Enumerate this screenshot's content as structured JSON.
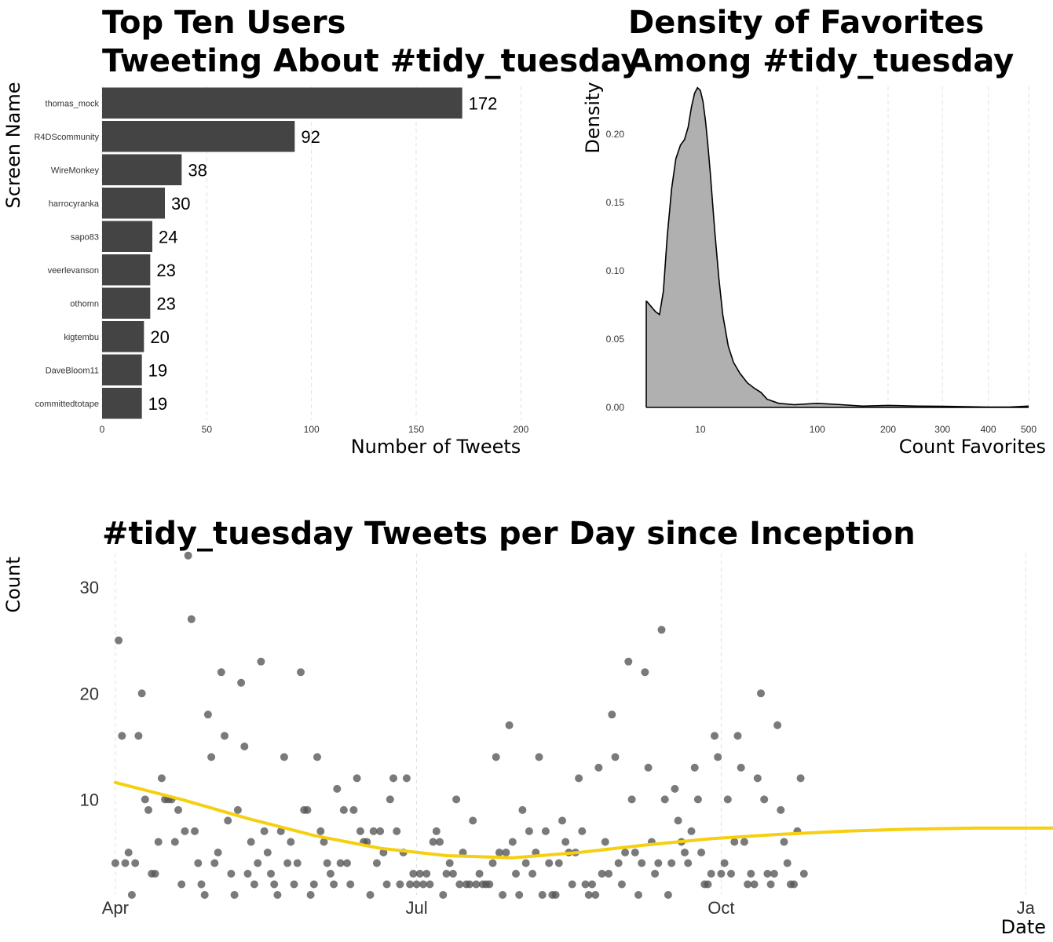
{
  "chart_data": [
    {
      "type": "bar",
      "orientation": "horizontal",
      "title_lines": [
        "Top Ten Users",
        "Tweeting About #tidy_tuesday"
      ],
      "xlabel": "Number of Tweets",
      "ylabel": "Screen Name",
      "categories": [
        "thomas_mock",
        "R4DScommunity",
        "WireMonkey",
        "harrocyranka",
        "sapo83",
        "veerlevanson",
        "othomn",
        "kigtembu",
        "DaveBloom11",
        "committedtotape"
      ],
      "values": [
        172,
        92,
        38,
        30,
        24,
        23,
        23,
        20,
        19,
        19
      ],
      "xticks": [
        "0",
        "50",
        "100",
        "150",
        "200"
      ],
      "xlim": [
        0,
        225
      ],
      "grid": "vertical dashed",
      "bar_color": "#444444"
    },
    {
      "type": "area",
      "title_lines": [
        "Density of Favorites",
        "Among #tidy_tuesday"
      ],
      "xlabel": "Count Favorites",
      "ylabel": "Density",
      "x_scale": "sqrt",
      "xticks": [
        "10",
        "100",
        "200",
        "300",
        "400",
        "500"
      ],
      "yticks": [
        "0.00",
        "0.05",
        "0.10",
        "0.15",
        "0.20"
      ],
      "ylim": [
        0,
        0.235
      ],
      "fill_color": "#b0b0b0",
      "line_color": "#000000",
      "density": [
        [
          0,
          0.078
        ],
        [
          0.3,
          0.07
        ],
        [
          0.6,
          0.068
        ],
        [
          1.0,
          0.085
        ],
        [
          1.5,
          0.125
        ],
        [
          2.2,
          0.16
        ],
        [
          3.0,
          0.182
        ],
        [
          4.0,
          0.192
        ],
        [
          5.0,
          0.196
        ],
        [
          6.0,
          0.205
        ],
        [
          7.0,
          0.22
        ],
        [
          8.0,
          0.23
        ],
        [
          9.0,
          0.234
        ],
        [
          10.0,
          0.232
        ],
        [
          11.0,
          0.224
        ],
        [
          12.0,
          0.21
        ],
        [
          13.0,
          0.192
        ],
        [
          14.0,
          0.172
        ],
        [
          16.0,
          0.13
        ],
        [
          18.0,
          0.095
        ],
        [
          20.0,
          0.068
        ],
        [
          23.0,
          0.045
        ],
        [
          26.0,
          0.033
        ],
        [
          30.0,
          0.025
        ],
        [
          35.0,
          0.018
        ],
        [
          40.0,
          0.014
        ],
        [
          45.0,
          0.011
        ],
        [
          50.0,
          0.006
        ],
        [
          60.0,
          0.003
        ],
        [
          75.0,
          0.002
        ],
        [
          100,
          0.003
        ],
        [
          130,
          0.002
        ],
        [
          160,
          0.001
        ],
        [
          200,
          0.0015
        ],
        [
          250,
          0.001
        ],
        [
          300,
          0.0008
        ],
        [
          350,
          0.0005
        ],
        [
          400,
          0.0003
        ],
        [
          450,
          0.0003
        ],
        [
          500,
          0.001
        ]
      ]
    },
    {
      "type": "scatter",
      "title": "#tidy_tuesday Tweets per Day since Inception",
      "xlabel": "Date",
      "ylabel": "Count",
      "xticks": [
        "Apr",
        "Jul",
        "Oct",
        "Ja"
      ],
      "yticks": [
        "10",
        "20",
        "30"
      ],
      "x_start_date": "2018-04-01",
      "xlim_days": [
        -4,
        283
      ],
      "ylim": [
        1,
        33.2
      ],
      "point_color": "#555555",
      "smooth_color": "#f5cf10",
      "points": [
        [
          0,
          4
        ],
        [
          1,
          25
        ],
        [
          2,
          16
        ],
        [
          3,
          4
        ],
        [
          4,
          5
        ],
        [
          5,
          1
        ],
        [
          6,
          4
        ],
        [
          7,
          16
        ],
        [
          8,
          20
        ],
        [
          9,
          10
        ],
        [
          10,
          9
        ],
        [
          11,
          3
        ],
        [
          12,
          3
        ],
        [
          13,
          6
        ],
        [
          14,
          12
        ],
        [
          15,
          10
        ],
        [
          16,
          10
        ],
        [
          17,
          10
        ],
        [
          18,
          6
        ],
        [
          19,
          9
        ],
        [
          20,
          2
        ],
        [
          21,
          7
        ],
        [
          22,
          33
        ],
        [
          23,
          27
        ],
        [
          24,
          7
        ],
        [
          25,
          4
        ],
        [
          26,
          2
        ],
        [
          27,
          1
        ],
        [
          28,
          18
        ],
        [
          29,
          14
        ],
        [
          30,
          4
        ],
        [
          31,
          5
        ],
        [
          32,
          22
        ],
        [
          33,
          16
        ],
        [
          34,
          8
        ],
        [
          35,
          3
        ],
        [
          36,
          1
        ],
        [
          37,
          9
        ],
        [
          38,
          21
        ],
        [
          39,
          15
        ],
        [
          40,
          3
        ],
        [
          41,
          6
        ],
        [
          42,
          2
        ],
        [
          43,
          4
        ],
        [
          44,
          23
        ],
        [
          45,
          7
        ],
        [
          46,
          5
        ],
        [
          47,
          3
        ],
        [
          48,
          2
        ],
        [
          49,
          1
        ],
        [
          50,
          7
        ],
        [
          51,
          14
        ],
        [
          52,
          4
        ],
        [
          53,
          6
        ],
        [
          54,
          2
        ],
        [
          55,
          4
        ],
        [
          56,
          22
        ],
        [
          57,
          9
        ],
        [
          58,
          9
        ],
        [
          59,
          1
        ],
        [
          60,
          2
        ],
        [
          61,
          14
        ],
        [
          62,
          7
        ],
        [
          63,
          6
        ],
        [
          64,
          4
        ],
        [
          65,
          3
        ],
        [
          66,
          2
        ],
        [
          67,
          11
        ],
        [
          68,
          4
        ],
        [
          69,
          9
        ],
        [
          70,
          4
        ],
        [
          71,
          2
        ],
        [
          72,
          9
        ],
        [
          73,
          12
        ],
        [
          74,
          7
        ],
        [
          75,
          6
        ],
        [
          76,
          6
        ],
        [
          77,
          1
        ],
        [
          78,
          7
        ],
        [
          79,
          4
        ],
        [
          80,
          7
        ],
        [
          81,
          5
        ],
        [
          82,
          2
        ],
        [
          83,
          10
        ],
        [
          84,
          12
        ],
        [
          85,
          7
        ],
        [
          86,
          2
        ],
        [
          87,
          5
        ],
        [
          88,
          12
        ],
        [
          89,
          2
        ],
        [
          90,
          3
        ],
        [
          91,
          2
        ],
        [
          92,
          3
        ],
        [
          93,
          2
        ],
        [
          94,
          3
        ],
        [
          95,
          2
        ],
        [
          96,
          6
        ],
        [
          97,
          7
        ],
        [
          98,
          6
        ],
        [
          99,
          1
        ],
        [
          100,
          3
        ],
        [
          101,
          4
        ],
        [
          102,
          3
        ],
        [
          103,
          10
        ],
        [
          104,
          2
        ],
        [
          105,
          5
        ],
        [
          106,
          2
        ],
        [
          107,
          2
        ],
        [
          108,
          8
        ],
        [
          109,
          2
        ],
        [
          110,
          3
        ],
        [
          111,
          2
        ],
        [
          112,
          2
        ],
        [
          113,
          2
        ],
        [
          114,
          4
        ],
        [
          115,
          14
        ],
        [
          116,
          5
        ],
        [
          117,
          1
        ],
        [
          118,
          5
        ],
        [
          119,
          17
        ],
        [
          120,
          6
        ],
        [
          121,
          3
        ],
        [
          122,
          1
        ],
        [
          123,
          9
        ],
        [
          124,
          4
        ],
        [
          125,
          7
        ],
        [
          126,
          3
        ],
        [
          127,
          5
        ],
        [
          128,
          14
        ],
        [
          129,
          1
        ],
        [
          130,
          7
        ],
        [
          131,
          4
        ],
        [
          132,
          1
        ],
        [
          133,
          1
        ],
        [
          134,
          4
        ],
        [
          135,
          8
        ],
        [
          136,
          6
        ],
        [
          137,
          5
        ],
        [
          138,
          2
        ],
        [
          139,
          5
        ],
        [
          140,
          12
        ],
        [
          141,
          7
        ],
        [
          142,
          2
        ],
        [
          143,
          1
        ],
        [
          144,
          2
        ],
        [
          145,
          1
        ],
        [
          146,
          13
        ],
        [
          147,
          3
        ],
        [
          148,
          6
        ],
        [
          149,
          3
        ],
        [
          150,
          18
        ],
        [
          151,
          14
        ],
        [
          152,
          4
        ],
        [
          153,
          2
        ],
        [
          154,
          5
        ],
        [
          155,
          23
        ],
        [
          156,
          10
        ],
        [
          157,
          5
        ],
        [
          158,
          1
        ],
        [
          159,
          4
        ],
        [
          160,
          22
        ],
        [
          161,
          13
        ],
        [
          162,
          6
        ],
        [
          163,
          3
        ],
        [
          164,
          4
        ],
        [
          165,
          26
        ],
        [
          166,
          10
        ],
        [
          167,
          1
        ],
        [
          168,
          4
        ],
        [
          169,
          11
        ],
        [
          170,
          8
        ],
        [
          171,
          6
        ],
        [
          172,
          5
        ],
        [
          173,
          4
        ],
        [
          174,
          7
        ],
        [
          175,
          13
        ],
        [
          176,
          10
        ],
        [
          177,
          5
        ],
        [
          178,
          2
        ],
        [
          179,
          2
        ],
        [
          180,
          3
        ],
        [
          181,
          16
        ],
        [
          182,
          14
        ],
        [
          183,
          3
        ],
        [
          184,
          4
        ],
        [
          185,
          10
        ],
        [
          186,
          3
        ],
        [
          187,
          6
        ],
        [
          188,
          16
        ],
        [
          189,
          13
        ],
        [
          190,
          6
        ],
        [
          191,
          2
        ],
        [
          192,
          3
        ],
        [
          193,
          2
        ],
        [
          194,
          12
        ],
        [
          195,
          20
        ],
        [
          196,
          10
        ],
        [
          197,
          3
        ],
        [
          198,
          2
        ],
        [
          199,
          3
        ],
        [
          200,
          17
        ],
        [
          201,
          9
        ],
        [
          202,
          6
        ],
        [
          203,
          4
        ],
        [
          204,
          2
        ],
        [
          205,
          2
        ],
        [
          206,
          7
        ],
        [
          207,
          12
        ],
        [
          208,
          3
        ]
      ],
      "smooth": [
        [
          0,
          11.6
        ],
        [
          20,
          10.0
        ],
        [
          40,
          8.2
        ],
        [
          60,
          6.6
        ],
        [
          80,
          5.4
        ],
        [
          100,
          4.7
        ],
        [
          120,
          4.5
        ],
        [
          140,
          5.0
        ],
        [
          160,
          5.7
        ],
        [
          180,
          6.3
        ],
        [
          200,
          6.7
        ],
        [
          220,
          7.0
        ],
        [
          240,
          7.2
        ],
        [
          260,
          7.3
        ],
        [
          283,
          7.3
        ]
      ]
    }
  ]
}
